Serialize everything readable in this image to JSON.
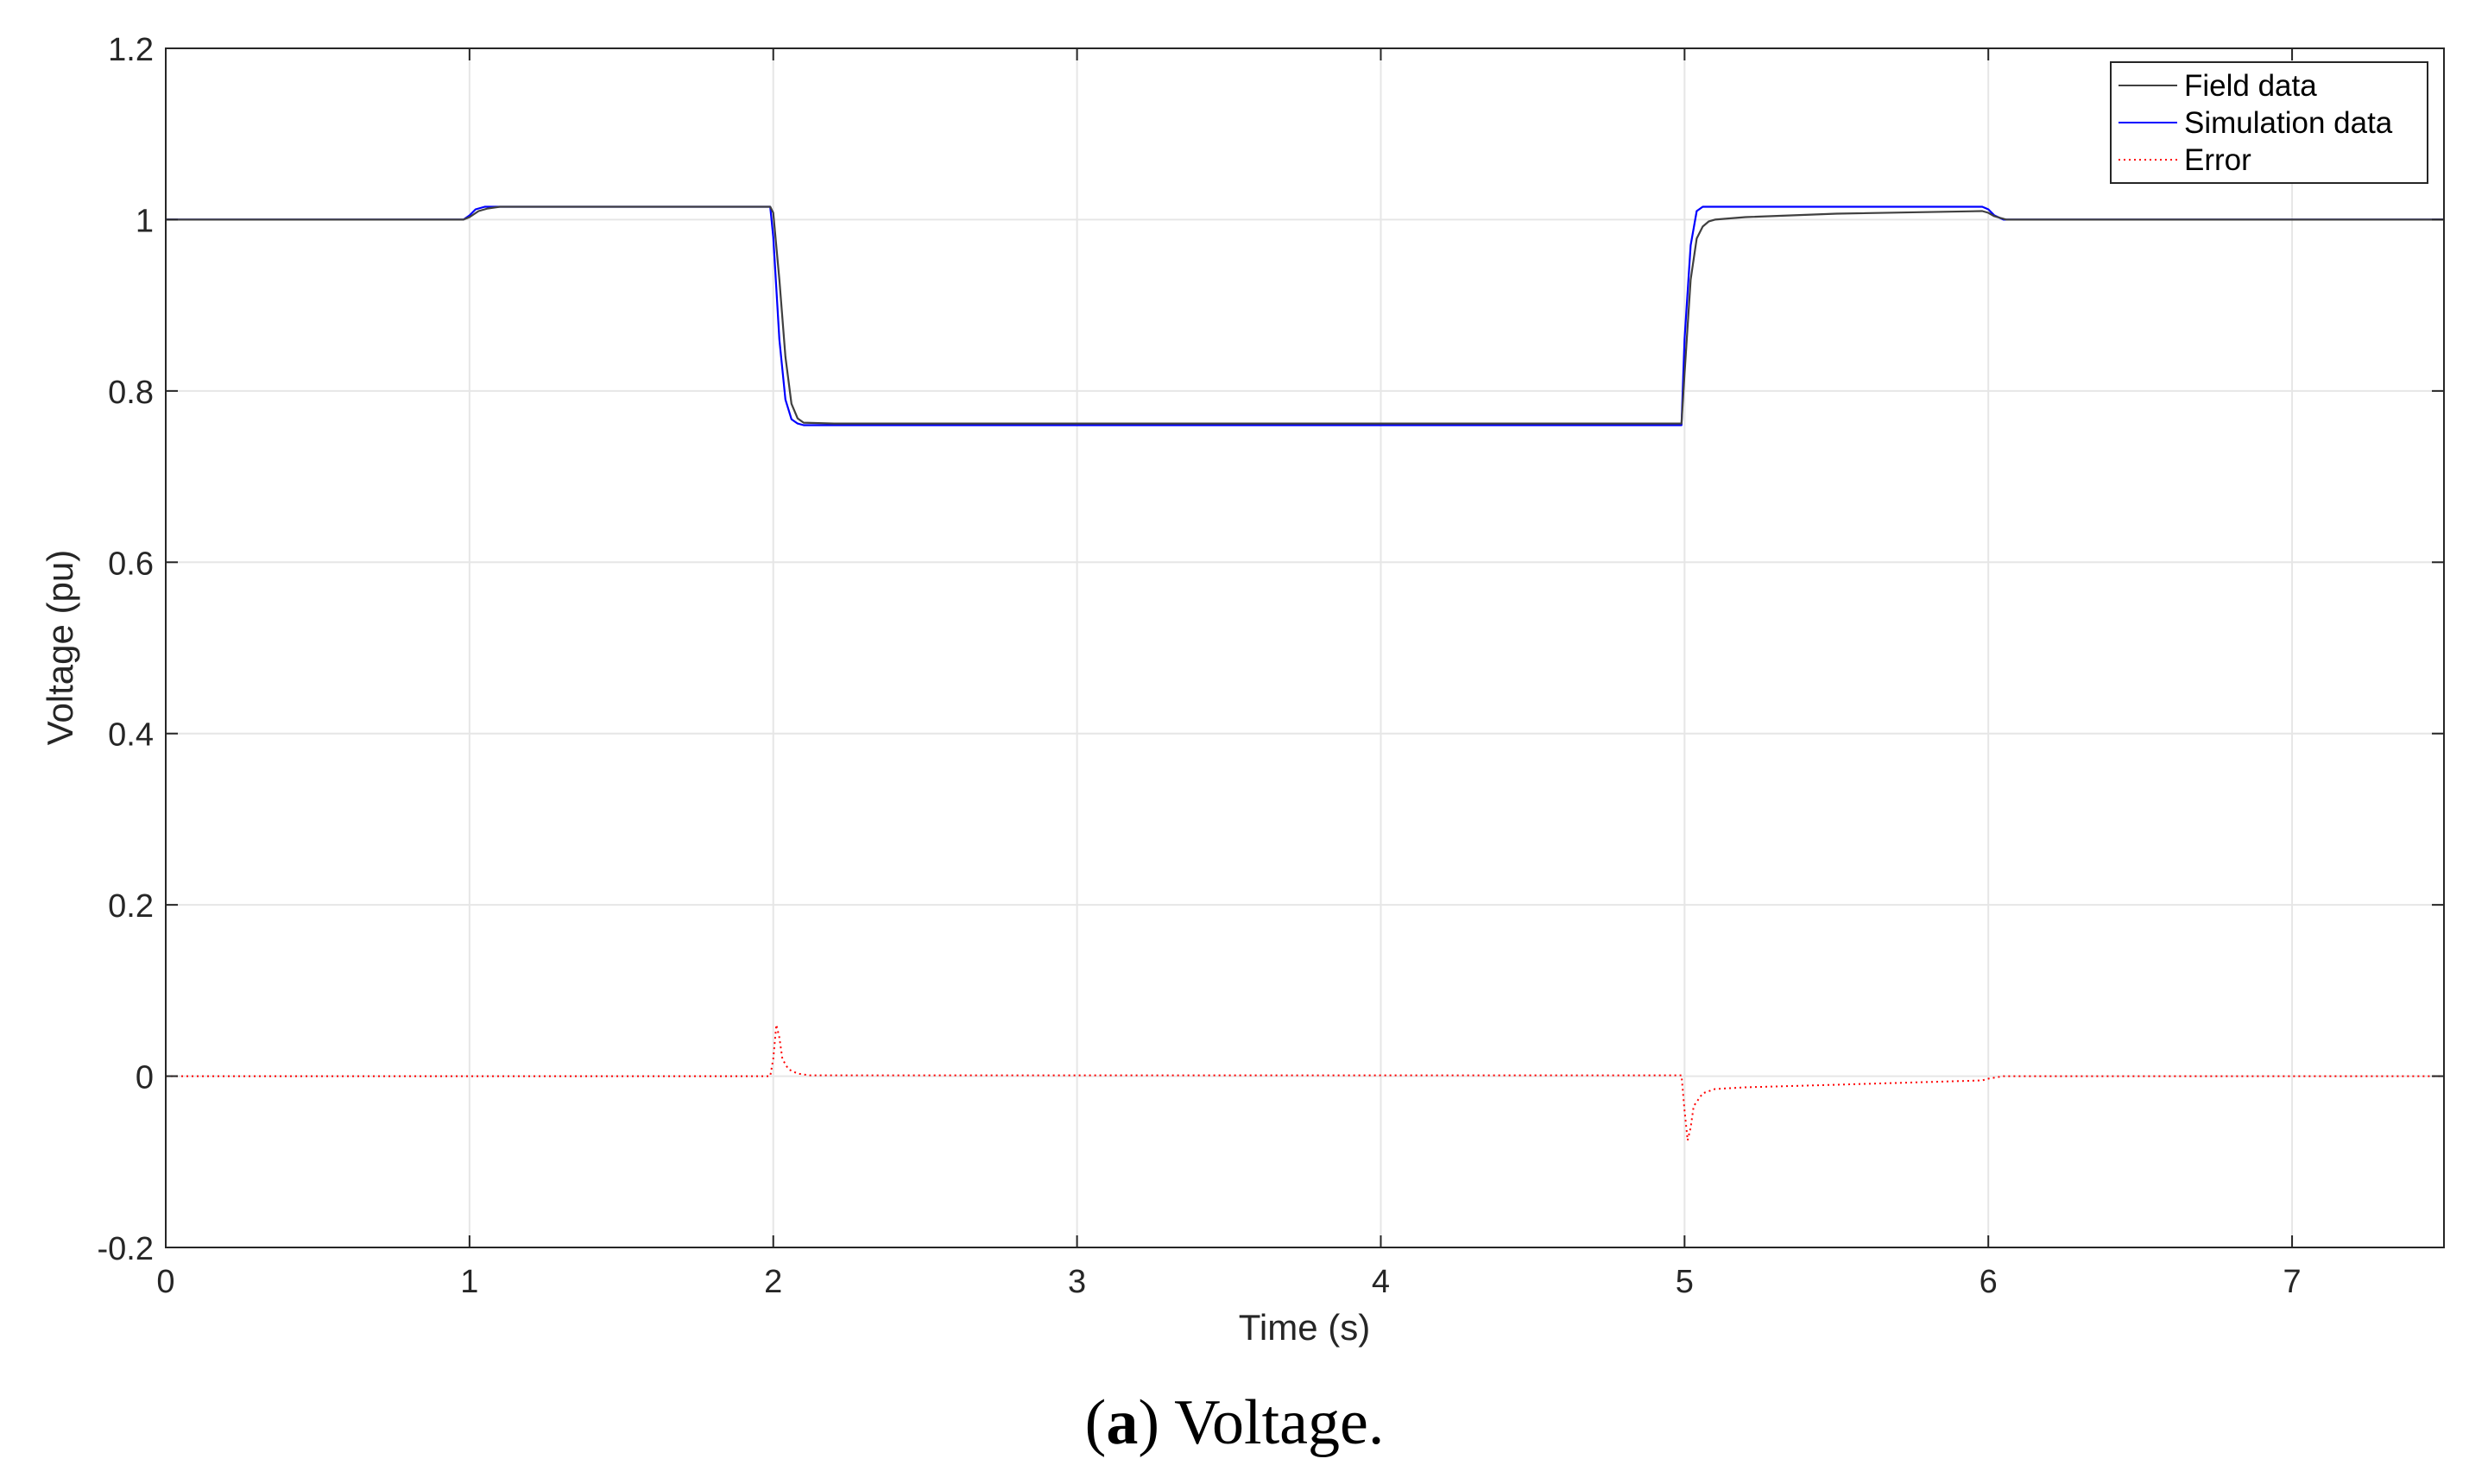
{
  "chart_data": {
    "type": "line",
    "xlabel": "Time (s)",
    "ylabel": "Voltage (pu)",
    "xlim": [
      0,
      7.5
    ],
    "ylim": [
      -0.2,
      1.2
    ],
    "x_ticks": [
      0,
      1,
      2,
      3,
      4,
      5,
      6,
      7
    ],
    "y_ticks": [
      -0.2,
      0,
      0.2,
      0.4,
      0.6,
      0.8,
      1,
      1.2
    ],
    "x_tick_labels": [
      "0",
      "1",
      "2",
      "3",
      "4",
      "5",
      "6",
      "7"
    ],
    "y_tick_labels": [
      "-0.2",
      "0",
      "0.2",
      "0.4",
      "0.6",
      "0.8",
      "1",
      "1.2"
    ],
    "grid": true,
    "legend_position": "top-right",
    "series": [
      {
        "name": "Field data",
        "color": "#404040",
        "style": "solid",
        "x": [
          0,
          0.98,
          1.0,
          1.03,
          1.06,
          1.1,
          1.99,
          2.0,
          2.02,
          2.04,
          2.06,
          2.08,
          2.1,
          2.2,
          3.0,
          4.0,
          4.99,
          5.0,
          5.02,
          5.04,
          5.06,
          5.08,
          5.1,
          5.2,
          5.5,
          5.98,
          6.0,
          6.02,
          6.06,
          6.1,
          7.5
        ],
        "y": [
          1.0,
          1.0,
          1.003,
          1.01,
          1.013,
          1.015,
          1.015,
          1.008,
          0.93,
          0.84,
          0.785,
          0.768,
          0.763,
          0.762,
          0.762,
          0.762,
          0.762,
          0.82,
          0.93,
          0.978,
          0.992,
          0.998,
          1.0,
          1.003,
          1.007,
          1.01,
          1.008,
          1.004,
          1.0,
          1.0,
          1.0
        ]
      },
      {
        "name": "Simulation data",
        "color": "#0000ff",
        "style": "solid",
        "x": [
          0,
          0.98,
          1.0,
          1.02,
          1.05,
          1.1,
          1.99,
          2.0,
          2.02,
          2.04,
          2.06,
          2.08,
          2.1,
          3.0,
          4.0,
          4.99,
          5.0,
          5.02,
          5.04,
          5.06,
          5.1,
          5.98,
          6.0,
          6.02,
          6.05,
          6.1,
          7.5
        ],
        "y": [
          1.0,
          1.0,
          1.005,
          1.012,
          1.015,
          1.015,
          1.015,
          0.98,
          0.86,
          0.79,
          0.767,
          0.762,
          0.76,
          0.76,
          0.76,
          0.76,
          0.86,
          0.97,
          1.01,
          1.015,
          1.015,
          1.015,
          1.012,
          1.005,
          1.0,
          1.0,
          1.0
        ]
      },
      {
        "name": "Error",
        "color": "#ff0000",
        "style": "dotted",
        "x": [
          0,
          1.0,
          1.99,
          2.0,
          2.01,
          2.02,
          2.03,
          2.05,
          2.08,
          2.12,
          3.0,
          4.0,
          4.99,
          5.0,
          5.01,
          5.02,
          5.03,
          5.06,
          5.1,
          5.2,
          5.5,
          5.98,
          6.0,
          6.05,
          7.5
        ],
        "y": [
          0.0,
          0.0,
          0.0,
          0.02,
          0.06,
          0.045,
          0.02,
          0.008,
          0.003,
          0.001,
          0.001,
          0.001,
          0.001,
          -0.04,
          -0.075,
          -0.06,
          -0.035,
          -0.02,
          -0.015,
          -0.013,
          -0.01,
          -0.005,
          -0.003,
          0.0,
          0.0
        ]
      }
    ]
  },
  "caption": {
    "label": "(a)",
    "label_letter": "a",
    "text": "Voltage."
  }
}
